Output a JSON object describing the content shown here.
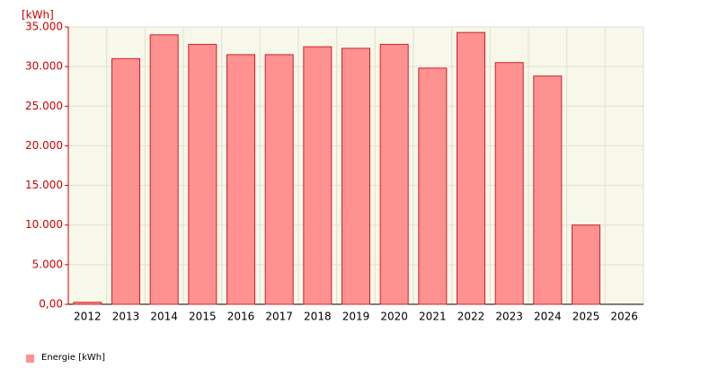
{
  "chart_data": {
    "type": "bar",
    "y_label": "[kWh]",
    "categories": [
      "2012",
      "2013",
      "2014",
      "2015",
      "2016",
      "2017",
      "2018",
      "2019",
      "2020",
      "2021",
      "2022",
      "2023",
      "2024",
      "2025",
      "2026"
    ],
    "series": [
      {
        "name": "Energie [kWh]",
        "color": "#ff9190",
        "values": [
          250,
          31000,
          34000,
          32800,
          31500,
          31500,
          32500,
          32300,
          32800,
          29800,
          34300,
          30500,
          28800,
          10000,
          null
        ]
      }
    ],
    "ylim": [
      0,
      35000
    ],
    "yticks": [
      {
        "value": 0,
        "label": "0,00"
      },
      {
        "value": 5000,
        "label": "5.000"
      },
      {
        "value": 10000,
        "label": "10.000"
      },
      {
        "value": 15000,
        "label": "15.000"
      },
      {
        "value": 20000,
        "label": "20.000"
      },
      {
        "value": 25000,
        "label": "25.000"
      },
      {
        "value": 30000,
        "label": "30.000"
      },
      {
        "value": 35000,
        "label": "35.000"
      }
    ],
    "grid": true
  }
}
